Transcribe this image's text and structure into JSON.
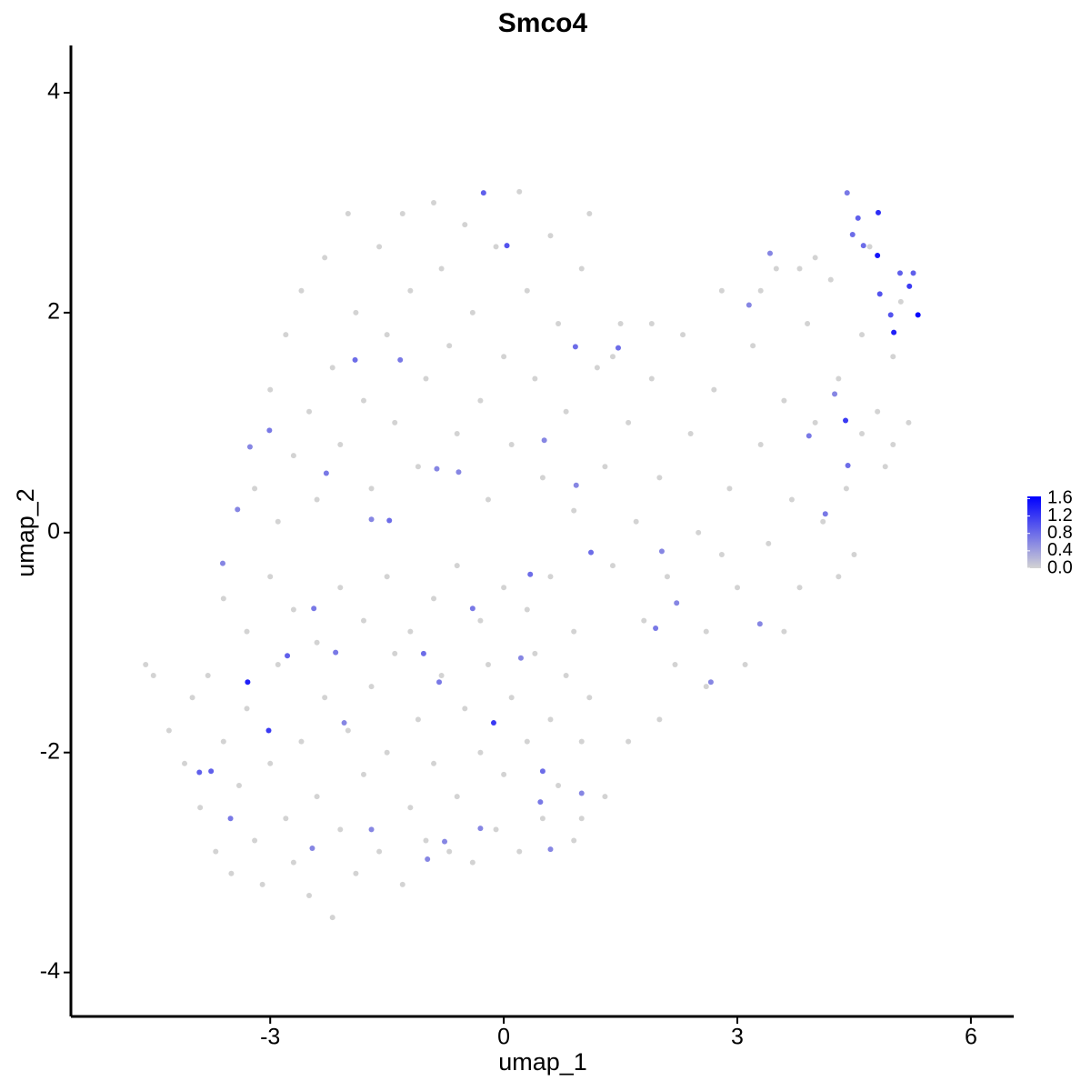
{
  "chart_data": {
    "type": "scatter",
    "title": "Smco4",
    "x_label": "umap_1",
    "y_label": "umap_2",
    "xlim": [
      -5.56,
      6.55
    ],
    "ylim": [
      -4.4,
      4.43
    ],
    "xticks": [
      -3,
      0,
      3,
      6
    ],
    "yticks": [
      -4,
      -2,
      0,
      2,
      4
    ],
    "low_color": "#d3d3d3",
    "high_color": "#0000ff",
    "clim": [
      0,
      1.65
    ],
    "cticks": [
      {
        "value": 0,
        "label": "0.0"
      },
      0.4,
      0.8,
      1.2,
      1.6
    ],
    "x": [
      -4.6,
      -4.5,
      -4.3,
      -4.1,
      -4.0,
      -3.9,
      -3.8,
      -3.7,
      -3.6,
      -3.5,
      -3.4,
      -3.3,
      -3.2,
      -3.1,
      -3.0,
      -2.9,
      -2.8,
      -2.7,
      -2.6,
      -2.5,
      -2.4,
      -2.3,
      -2.2,
      -2.1,
      -2.0,
      -1.9,
      -1.8,
      -1.7,
      -1.6,
      -1.5,
      -1.4,
      -1.3,
      -1.2,
      -1.1,
      -1.0,
      -0.9,
      -0.8,
      -0.7,
      -0.6,
      -0.5,
      -0.4,
      -0.3,
      -0.2,
      -0.1,
      0.0,
      0.1,
      0.2,
      0.3,
      0.4,
      0.5,
      0.6,
      0.7,
      0.8,
      0.9,
      1.0,
      1.1,
      -3.6,
      -3.3,
      -3.0,
      -2.7,
      -2.4,
      -2.1,
      -1.8,
      -1.5,
      -1.2,
      -0.9,
      -0.6,
      -0.3,
      0.0,
      0.3,
      0.6,
      0.9,
      -3.2,
      -3.0,
      -2.9,
      -2.8,
      -2.7,
      -2.6,
      -2.5,
      -2.4,
      -2.3,
      -2.2,
      -2.1,
      -2.0,
      -1.9,
      -1.8,
      -1.7,
      -1.6,
      -1.5,
      -1.4,
      -1.3,
      -1.2,
      -1.1,
      -1.0,
      -0.9,
      -0.8,
      -0.7,
      -0.6,
      -0.5,
      -0.4,
      -0.3,
      -0.2,
      -0.1,
      0.0,
      0.1,
      0.2,
      0.3,
      0.4,
      0.5,
      0.6,
      0.7,
      0.8,
      0.9,
      1.1,
      1.0,
      1.2,
      1.3,
      1.4,
      1.5,
      1.6,
      1.7,
      1.8,
      1.9,
      2.0,
      2.1,
      2.2,
      2.3,
      2.4,
      2.5,
      2.6,
      2.7,
      2.8,
      2.9,
      3.0,
      3.1,
      3.2,
      3.3,
      3.4,
      3.5,
      3.6,
      3.7,
      3.8,
      3.9,
      4.0,
      4.1,
      4.2,
      4.3,
      4.4,
      4.5,
      4.6,
      4.7,
      4.8,
      4.9,
      5.0,
      5.1,
      5.2,
      2.0,
      1.6,
      1.3,
      1.0,
      2.6,
      3.6,
      4.3,
      2.8,
      3.3,
      4.0,
      3.8,
      1.9,
      1.4,
      4.6,
      5.0,
      4.8,
      4.81,
      5.32,
      5.01,
      5.21,
      4.39,
      -3.29,
      -3.02,
      -0.13,
      0.04,
      -0.26,
      0.92,
      1.12,
      0.34,
      -1.03,
      -2.78,
      -2.44,
      -1.91,
      -2.28,
      -1.47,
      -1.7,
      -0.86,
      -1.33,
      0.5,
      0.47,
      -3.76,
      -3.91,
      -3.51,
      1.95,
      2.22,
      2.03,
      4.13,
      4.42,
      3.92,
      4.25,
      3.42,
      3.15,
      1.47,
      0.93,
      0.52,
      -0.58,
      -3.26,
      -3.01,
      -3.42,
      -3.61,
      -0.83,
      0.22,
      -0.4,
      -2.16,
      -2.05,
      -1.7,
      -2.46,
      -0.98,
      -0.76,
      -0.3,
      0.6,
      1.0,
      2.66,
      3.29,
      4.83,
      4.48,
      4.62,
      5.09,
      5.26,
      4.97,
      4.55,
      4.41
    ],
    "y": [
      -1.2,
      -1.3,
      -1.8,
      -2.1,
      -1.5,
      -2.5,
      -1.3,
      -2.9,
      -1.9,
      -3.1,
      -2.3,
      -1.6,
      -2.8,
      -3.2,
      -2.1,
      -1.2,
      -2.6,
      -3.0,
      -1.9,
      -3.3,
      -2.4,
      -1.5,
      -3.5,
      -2.7,
      -1.8,
      -3.1,
      -2.2,
      -1.4,
      -2.9,
      -2.0,
      -1.1,
      -3.2,
      -2.5,
      -1.7,
      -2.8,
      -2.1,
      -1.3,
      -2.9,
      -2.4,
      -1.6,
      -3.0,
      -2.0,
      -1.2,
      -2.7,
      -2.2,
      -1.5,
      -2.9,
      -1.9,
      -1.1,
      -2.6,
      -1.7,
      -2.3,
      -1.3,
      -2.8,
      -1.9,
      -1.5,
      -0.6,
      -0.9,
      -0.4,
      -0.7,
      -1.0,
      -0.5,
      -0.8,
      -0.4,
      -0.9,
      -0.6,
      -0.3,
      -0.8,
      -0.5,
      -0.7,
      -0.4,
      -0.9,
      0.4,
      1.3,
      0.1,
      1.8,
      0.7,
      2.2,
      1.1,
      0.3,
      2.5,
      1.5,
      0.8,
      2.9,
      2.0,
      1.2,
      0.4,
      2.6,
      1.8,
      1.0,
      2.9,
      2.2,
      0.6,
      1.4,
      3.0,
      2.4,
      1.7,
      0.9,
      2.8,
      2.0,
      1.2,
      0.3,
      2.6,
      1.6,
      0.8,
      3.1,
      2.2,
      1.4,
      0.5,
      2.7,
      1.9,
      1.1,
      0.2,
      2.9,
      2.4,
      1.5,
      0.6,
      -0.3,
      1.9,
      1.0,
      0.1,
      -0.8,
      1.4,
      0.5,
      -0.4,
      -1.2,
      1.8,
      0.9,
      0.0,
      -0.9,
      1.3,
      2.2,
      0.4,
      -0.5,
      -1.2,
      1.7,
      0.8,
      -0.1,
      2.4,
      1.2,
      0.3,
      -0.5,
      1.9,
      1.0,
      0.1,
      2.3,
      1.4,
      0.4,
      -0.2,
      1.8,
      2.6,
      1.1,
      0.6,
      1.6,
      2.1,
      1.0,
      -1.7,
      -1.9,
      -2.4,
      -2.6,
      -1.4,
      -0.9,
      -0.4,
      -0.2,
      2.2,
      2.5,
      2.4,
      1.9,
      1.6,
      0.9,
      0.8,
      2.52,
      2.91,
      1.98,
      1.82,
      2.24,
      1.02,
      -1.36,
      -1.8,
      -1.73,
      2.61,
      3.09,
      1.69,
      -0.18,
      -0.38,
      -1.1,
      -1.12,
      -0.69,
      1.57,
      0.54,
      0.11,
      0.12,
      0.58,
      1.57,
      -2.17,
      -2.45,
      -2.17,
      -2.18,
      -2.6,
      -0.87,
      -0.64,
      -0.17,
      0.17,
      0.61,
      0.88,
      1.26,
      2.54,
      2.07,
      1.68,
      0.43,
      0.84,
      0.55,
      0.78,
      0.93,
      0.21,
      -0.28,
      -1.36,
      -1.14,
      -0.69,
      -1.09,
      -1.73,
      -2.7,
      -2.87,
      -2.97,
      -2.81,
      -2.69,
      -2.88,
      -2.37,
      -1.36,
      -0.83,
      2.17,
      2.71,
      2.61,
      2.36,
      2.36,
      1.98,
      2.86,
      3.09
    ],
    "values": [
      0,
      0,
      0,
      0,
      0,
      0,
      0,
      0,
      0,
      0,
      0,
      0,
      0,
      0,
      0,
      0,
      0,
      0,
      0,
      0,
      0,
      0,
      0,
      0,
      0,
      0,
      0,
      0,
      0,
      0,
      0,
      0,
      0,
      0,
      0,
      0,
      0,
      0,
      0,
      0,
      0,
      0,
      0,
      0,
      0,
      0,
      0,
      0,
      0,
      0,
      0,
      0,
      0,
      0,
      0,
      0,
      0,
      0,
      0,
      0,
      0,
      0,
      0,
      0,
      0,
      0,
      0,
      0,
      0,
      0,
      0,
      0,
      0,
      0,
      0,
      0,
      0,
      0,
      0,
      0,
      0,
      0,
      0,
      0,
      0,
      0,
      0,
      0,
      0,
      0,
      0,
      0,
      0,
      0,
      0,
      0,
      0,
      0,
      0,
      0,
      0,
      0,
      0,
      0,
      0,
      0,
      0,
      0,
      0,
      0,
      0,
      0,
      0,
      0,
      0,
      0,
      0,
      0,
      0,
      0,
      0,
      0,
      0,
      0,
      0,
      0,
      0,
      0,
      0,
      0,
      0,
      0,
      0,
      0,
      0,
      0,
      0,
      0,
      0,
      0,
      0,
      0,
      0,
      0,
      0,
      0,
      0,
      0,
      0,
      0,
      0,
      0,
      0,
      0,
      0,
      0,
      0,
      0,
      0,
      0,
      0,
      0,
      0,
      0,
      0,
      0,
      0,
      0,
      0,
      0,
      0,
      1.5,
      1.3,
      1.6,
      1.4,
      1.2,
      1.2,
      1.4,
      1.2,
      1.2,
      1.0,
      0.9,
      0.8,
      0.8,
      0.8,
      0.8,
      0.9,
      0.7,
      0.8,
      0.7,
      0.8,
      0.6,
      0.6,
      0.7,
      0.8,
      0.7,
      0.9,
      0.9,
      0.7,
      0.7,
      0.6,
      0.6,
      0.7,
      0.8,
      0.7,
      0.6,
      0.6,
      0.6,
      0.8,
      0.6,
      0.6,
      0.6,
      0.6,
      0.7,
      0.6,
      0.6,
      0.7,
      0.6,
      0.7,
      0.7,
      0.6,
      0.6,
      0.6,
      0.6,
      0.6,
      0.6,
      0.6,
      0.6,
      0.6,
      0.6,
      1.0,
      0.8,
      0.8,
      0.9,
      0.9,
      1.0,
      0.9,
      0.7
    ]
  }
}
